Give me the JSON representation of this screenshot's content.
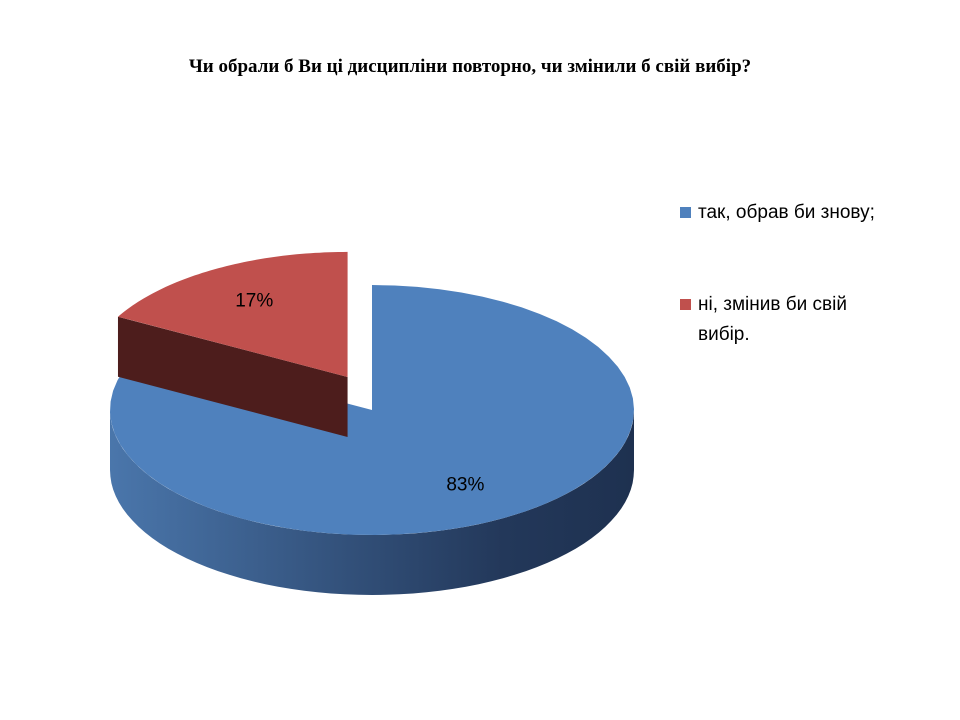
{
  "chart_data": {
    "type": "pie",
    "title": "Чи обрали б Ви ці дисципліни повторно, чи змінили б свій вибір?",
    "categories": [
      "так, обрав би знову;",
      "ні, змінив би свій вибір."
    ],
    "values": [
      83,
      17
    ],
    "value_labels": [
      "83%",
      "17%"
    ],
    "colors": [
      "#4f81bd",
      "#c0504d"
    ],
    "legend": "right"
  }
}
